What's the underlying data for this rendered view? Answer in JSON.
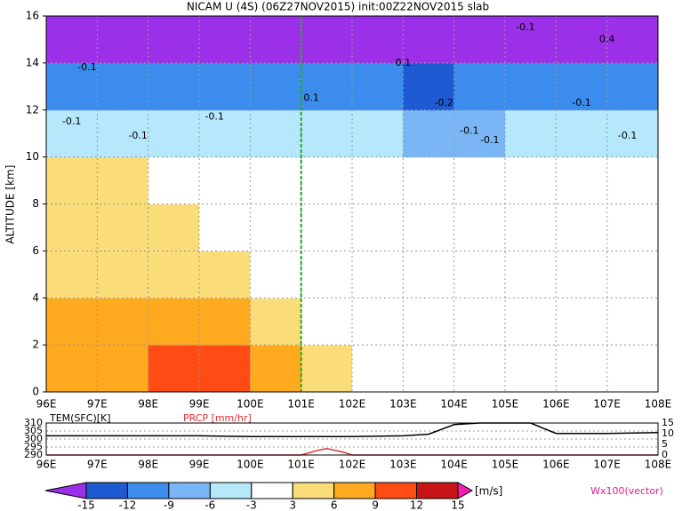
{
  "chart_data": [
    {
      "type": "field",
      "title": "NICAM U (4S) (06Z27NOV2015) init:00Z22NOV2015 slab",
      "ylabel": "ALTITUDE [km]",
      "xlim": [
        96,
        108
      ],
      "xticks": [
        {
          "value": 96,
          "label": "96E"
        },
        {
          "value": 97,
          "label": "97E"
        },
        {
          "value": 98,
          "label": "98E"
        },
        {
          "value": 99,
          "label": "99E"
        },
        {
          "value": 100,
          "label": "100E"
        },
        {
          "value": 101,
          "label": "101E"
        },
        {
          "value": 102,
          "label": "102E"
        },
        {
          "value": 103,
          "label": "103E"
        },
        {
          "value": 104,
          "label": "104E"
        },
        {
          "value": 105,
          "label": "105E"
        },
        {
          "value": 106,
          "label": "106E"
        },
        {
          "value": 107,
          "label": "107E"
        },
        {
          "value": 108,
          "label": "108E"
        }
      ],
      "ylim": [
        0,
        16
      ],
      "yticks": [
        0,
        2,
        4,
        6,
        8,
        10,
        12,
        14,
        16
      ],
      "grid": true,
      "reference_x": 101,
      "x": [
        96.5,
        97.5,
        98.5,
        99.5,
        100.5,
        101.5,
        102.5,
        103.5,
        104.5,
        105.5,
        106.5,
        107.5
      ],
      "y": [
        1,
        3,
        5,
        7,
        9,
        11,
        13,
        15
      ],
      "values": [
        [
          8,
          8,
          9,
          10,
          8,
          5,
          0,
          0,
          0,
          0,
          0,
          0
        ],
        [
          7,
          7,
          7,
          7,
          4,
          0,
          0,
          0,
          0,
          0,
          0,
          0
        ],
        [
          5,
          5,
          4,
          4,
          0,
          0,
          0,
          0,
          0,
          0,
          0,
          0
        ],
        [
          4,
          4,
          4,
          0,
          0,
          0,
          0,
          0,
          0,
          0,
          0,
          0
        ],
        [
          4,
          4,
          0,
          0,
          0,
          0,
          0,
          0,
          0,
          0,
          0,
          0
        ],
        [
          -4,
          -5,
          -5,
          -5,
          -4,
          -4,
          -4,
          -7,
          -7,
          -5,
          -5,
          -5
        ],
        [
          -11,
          -11,
          -11,
          -11,
          -11,
          -11,
          -11,
          -13,
          -12,
          -11,
          -11,
          -11
        ],
        [
          -16,
          -16,
          -16,
          -16,
          -16,
          -16,
          -16,
          -16,
          -16,
          -16,
          -16,
          -16
        ]
      ],
      "levels": [
        -15,
        -12,
        -9,
        -6,
        -3,
        3,
        6,
        9,
        12,
        15
      ],
      "level_colors": [
        "#9b30e8",
        "#1e5ad2",
        "#3c8ced",
        "#7ab6f5",
        "#b6e8fb",
        "#ffffff",
        "#fadc78",
        "#ffaa1e",
        "#ff4b14",
        "#c81414",
        "#f01eb4"
      ],
      "unit": "[m/s]",
      "vector_label": "Wx100(vector)",
      "contour_labels": [
        {
          "text": "-0.1",
          "x": 96.8,
          "y": 13.8
        },
        {
          "text": "-0.1",
          "x": 96.5,
          "y": 11.5
        },
        {
          "text": "-0.1",
          "x": 97.8,
          "y": 10.9
        },
        {
          "text": "-0.1",
          "x": 99.3,
          "y": 11.7
        },
        {
          "text": "0.1",
          "x": 101.2,
          "y": 12.5
        },
        {
          "text": "0.1",
          "x": 103,
          "y": 14
        },
        {
          "text": "-0.2",
          "x": 103.8,
          "y": 12.3
        },
        {
          "text": "-0.1",
          "x": 104.3,
          "y": 11.1
        },
        {
          "text": "-0.1",
          "x": 104.7,
          "y": 10.7
        },
        {
          "text": "-0.1",
          "x": 105.4,
          "y": 15.5
        },
        {
          "text": "-0.1",
          "x": 106.5,
          "y": 12.3
        },
        {
          "text": "-0.1",
          "x": 107.4,
          "y": 10.9
        },
        {
          "text": "0.4",
          "x": 107,
          "y": 15
        }
      ]
    },
    {
      "type": "line",
      "xlim": [
        96,
        108
      ],
      "xticks": [
        {
          "value": 96,
          "label": "96E"
        },
        {
          "value": 97,
          "label": "97E"
        },
        {
          "value": 98,
          "label": "98E"
        },
        {
          "value": 99,
          "label": "99E"
        },
        {
          "value": 100,
          "label": "100E"
        },
        {
          "value": 101,
          "label": "101E"
        },
        {
          "value": 102,
          "label": "102E"
        },
        {
          "value": 103,
          "label": "103E"
        },
        {
          "value": 104,
          "label": "104E"
        },
        {
          "value": 105,
          "label": "105E"
        },
        {
          "value": 106,
          "label": "106E"
        },
        {
          "value": 107,
          "label": "107E"
        },
        {
          "value": 108,
          "label": "108E"
        }
      ],
      "ylim": [
        290,
        310
      ],
      "yticks": [
        290,
        295,
        300,
        305,
        310
      ],
      "y2lim": [
        0,
        15
      ],
      "y2ticks": [
        0,
        5,
        10,
        15
      ],
      "x": [
        96,
        97,
        98,
        99,
        100,
        101,
        101.3,
        101.5,
        101.8,
        102,
        103,
        103.5,
        104,
        104.5,
        105,
        105.5,
        106,
        107,
        108
      ],
      "series": [
        {
          "name": "TEM(SFC)[K]",
          "color": "#000000",
          "values": [
            302,
            302,
            302,
            302,
            301.5,
            301.5,
            301.5,
            301.5,
            301.5,
            301.5,
            302,
            303,
            309,
            310,
            310,
            310,
            303.5,
            303.5,
            304
          ]
        },
        {
          "name": "PRCP [mm/hr]",
          "color": "#e03030",
          "axis": "y2",
          "values": [
            0,
            0,
            0,
            0,
            0,
            0,
            2,
            3,
            1.5,
            0,
            0,
            0,
            0,
            0,
            0,
            0,
            0,
            0,
            0
          ]
        }
      ]
    }
  ]
}
